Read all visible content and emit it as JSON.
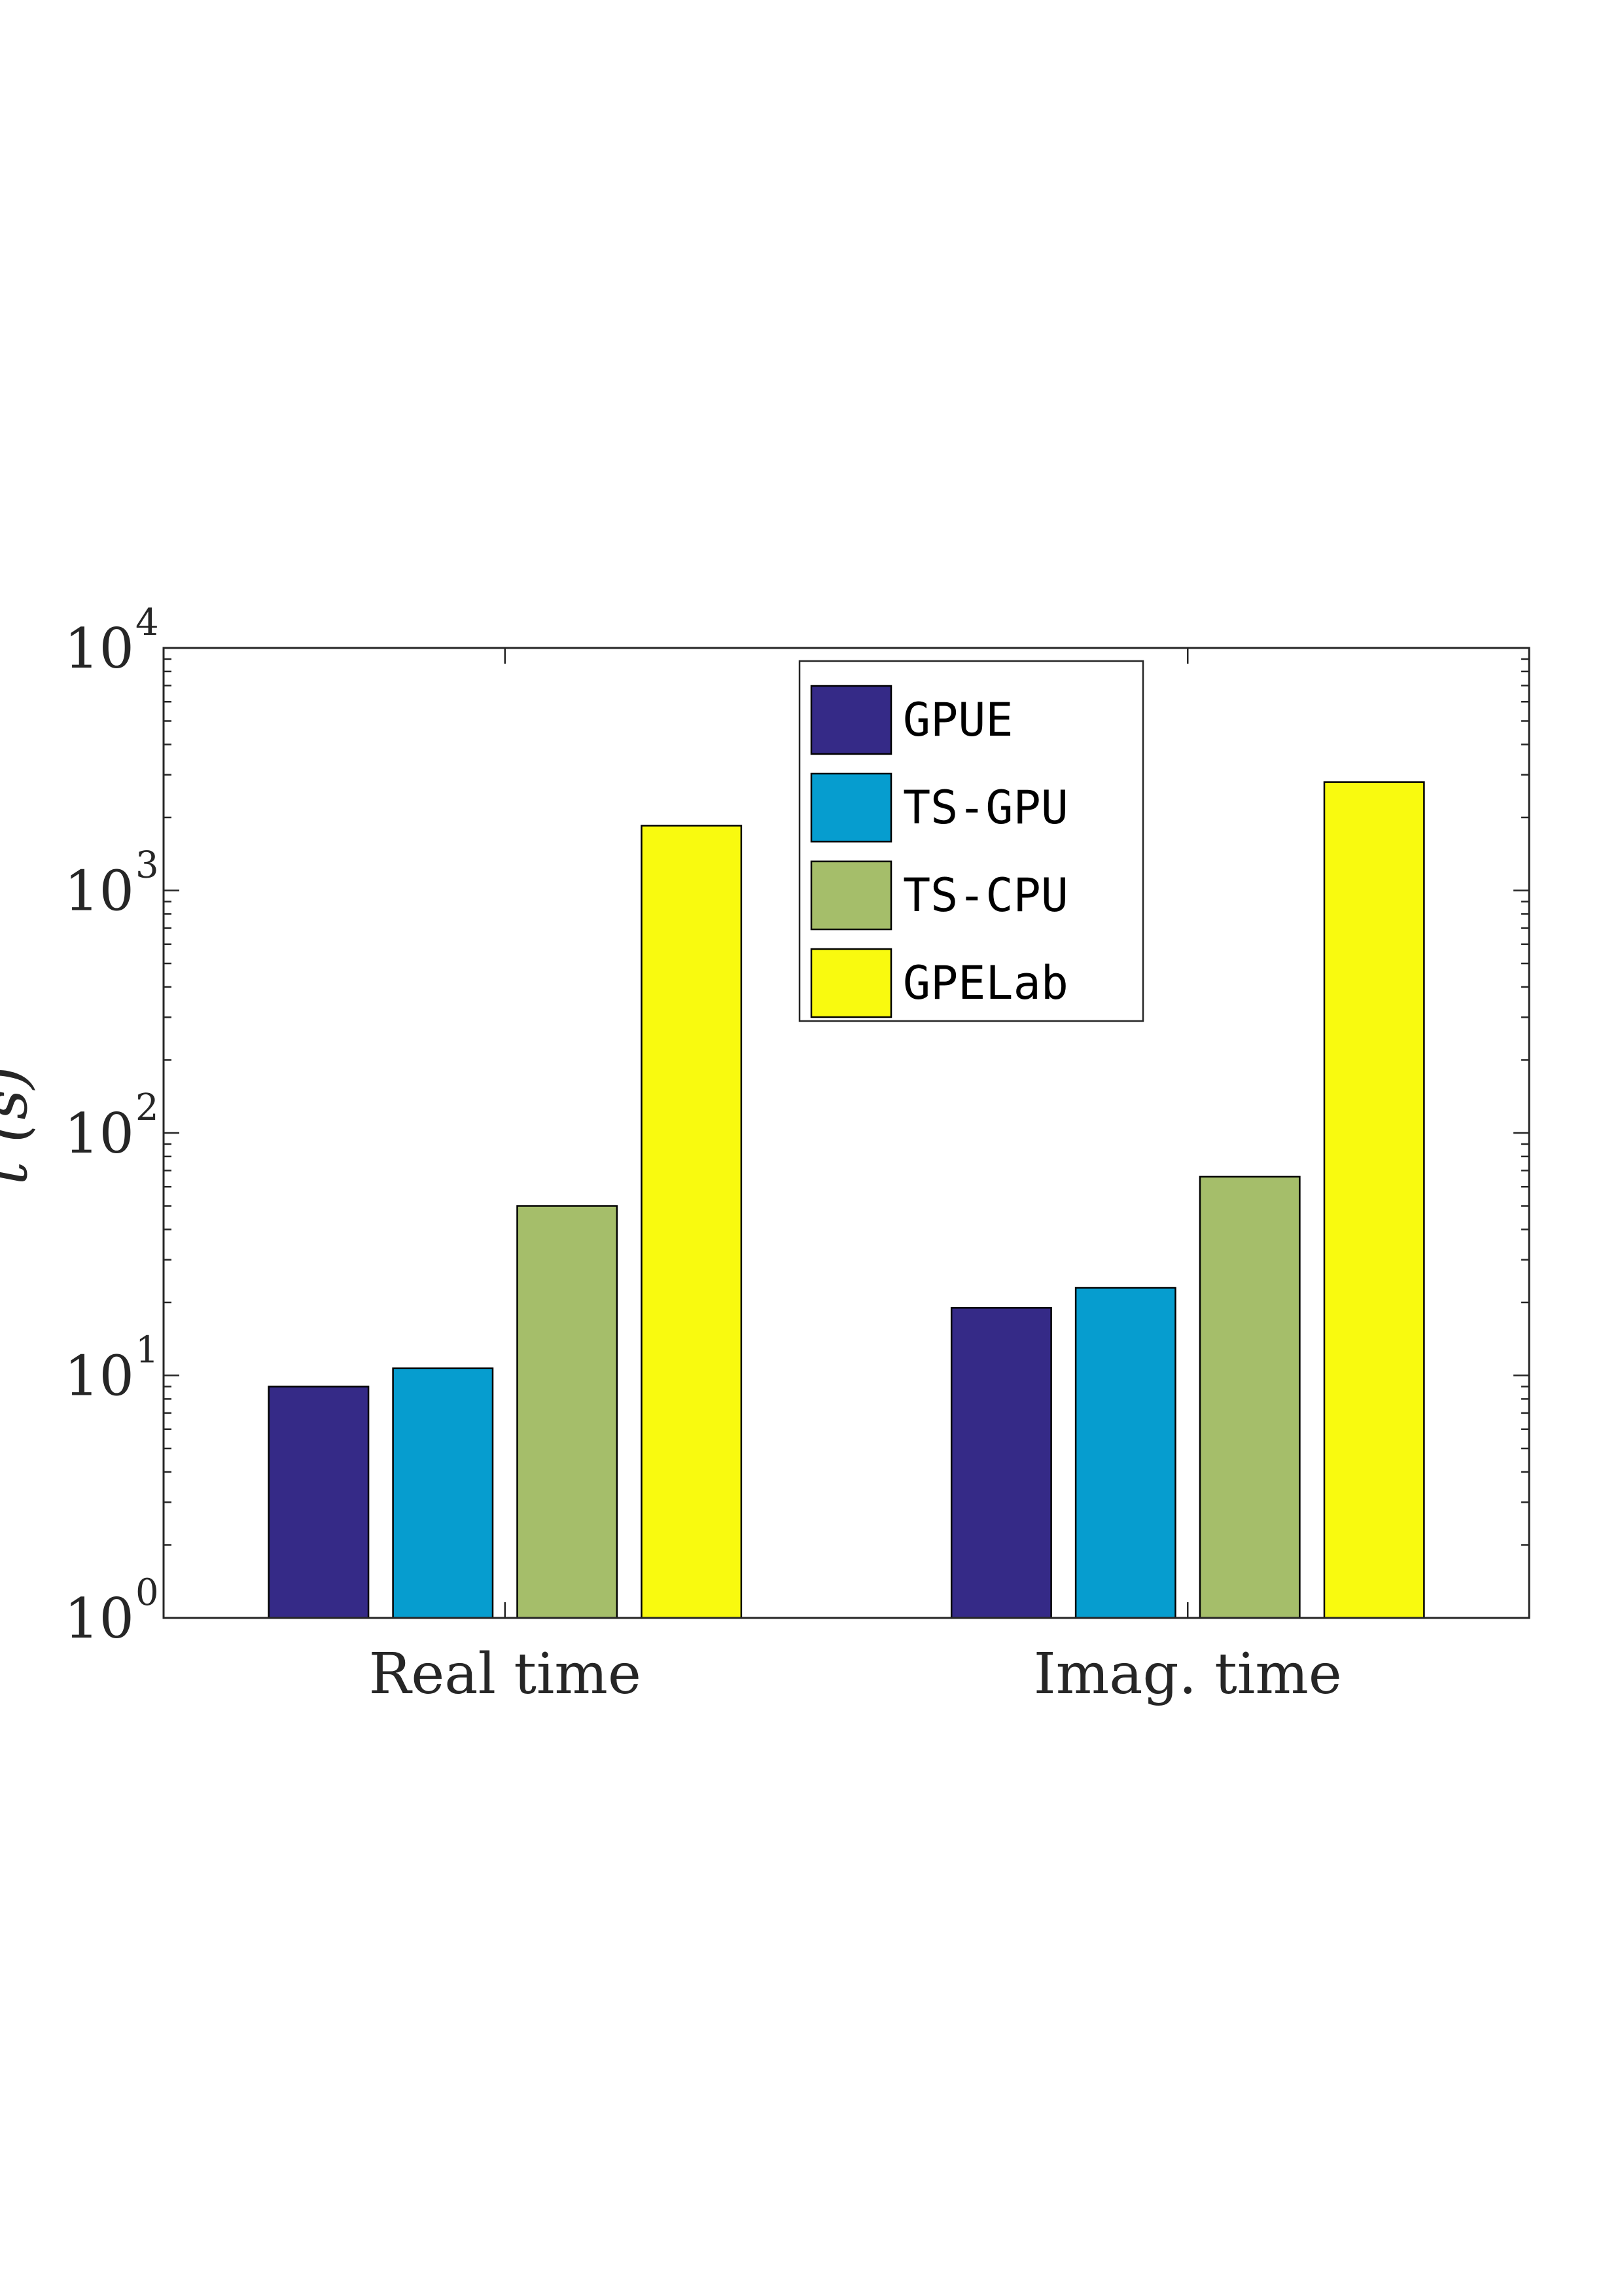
{
  "chart_data": {
    "type": "bar",
    "yscale": "log",
    "ylim": [
      1,
      10000
    ],
    "yticks": [
      {
        "base": "10",
        "exp": "0",
        "value": 1
      },
      {
        "base": "10",
        "exp": "1",
        "value": 10
      },
      {
        "base": "10",
        "exp": "2",
        "value": 100
      },
      {
        "base": "10",
        "exp": "3",
        "value": 1000
      },
      {
        "base": "10",
        "exp": "4",
        "value": 10000
      }
    ],
    "ylabel": "t (s)",
    "xlabel": "",
    "title": "",
    "categories": [
      "Real time",
      "Imag. time"
    ],
    "series": [
      {
        "name": "GPUE",
        "color": "#352A87",
        "values": [
          9,
          19
        ]
      },
      {
        "name": "TS-GPU",
        "color": "#069DCF",
        "values": [
          10.7,
          23
        ]
      },
      {
        "name": "TS-CPU",
        "color": "#A5BE6A",
        "values": [
          50,
          66
        ]
      },
      {
        "name": "GPELab",
        "color": "#F9FA0F",
        "values": [
          1850,
          2800
        ]
      }
    ],
    "legend": {
      "position": "top-center"
    },
    "grid": false
  }
}
